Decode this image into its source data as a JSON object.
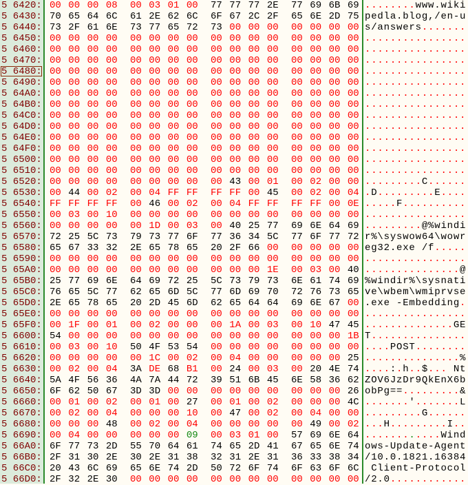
{
  "editor": {
    "selected_address": "5 6480",
    "colors": {
      "address": "#800000",
      "printable": "#000000",
      "non_printable": "#ff0000",
      "tab": "#118811",
      "address_bg": "#dcebdc",
      "separator": "#2a8a2a"
    },
    "rows": [
      {
        "addr": "5 6420",
        "hex": "00 00 00 08 00 03 01 00 77 77 77 2E 77 69 6B 69",
        "ascii": "........www.wiki"
      },
      {
        "addr": "5 6430",
        "hex": "70 65 64 6C 61 2E 62 6C 6F 67 2C 2F 65 6E 2D 75",
        "ascii": "pedla.blog,/en-u"
      },
      {
        "addr": "5 6440",
        "hex": "73 2F 61 6E 73 77 65 72 73 00 00 00 00 00 00 00",
        "ascii": "s/answers......."
      },
      {
        "addr": "5 6450",
        "hex": "00 00 00 00 00 00 00 00 00 00 00 00 00 00 00 00",
        "ascii": "................"
      },
      {
        "addr": "5 6460",
        "hex": "00 00 00 00 00 00 00 00 00 00 00 00 00 00 00 00",
        "ascii": "................"
      },
      {
        "addr": "5 6470",
        "hex": "00 00 00 00 00 00 00 00 00 00 00 00 00 00 00 00",
        "ascii": "................"
      },
      {
        "addr": "5 6480",
        "hex": "00 00 00 00 00 00 00 00 00 00 00 00 00 00 00 00",
        "ascii": "................"
      },
      {
        "addr": "5 6490",
        "hex": "00 00 00 00 00 00 00 00 00 00 00 00 00 00 00 00",
        "ascii": "................"
      },
      {
        "addr": "5 64A0",
        "hex": "00 00 00 00 00 00 00 00 00 00 00 00 00 00 00 00",
        "ascii": "................"
      },
      {
        "addr": "5 64B0",
        "hex": "00 00 00 00 00 00 00 00 00 00 00 00 00 00 00 00",
        "ascii": "................"
      },
      {
        "addr": "5 64C0",
        "hex": "00 00 00 00 00 00 00 00 00 00 00 00 00 00 00 00",
        "ascii": "................"
      },
      {
        "addr": "5 64D0",
        "hex": "00 00 00 00 00 00 00 00 00 00 00 00 00 00 00 00",
        "ascii": "................"
      },
      {
        "addr": "5 64E0",
        "hex": "00 00 00 00 00 00 00 00 00 00 00 00 00 00 00 00",
        "ascii": "................"
      },
      {
        "addr": "5 64F0",
        "hex": "00 00 00 00 00 00 00 00 00 00 00 00 00 00 00 00",
        "ascii": "................"
      },
      {
        "addr": "5 6500",
        "hex": "00 00 00 00 00 00 00 00 00 00 00 00 00 00 00 00",
        "ascii": "................"
      },
      {
        "addr": "5 6510",
        "hex": "00 00 00 00 00 00 00 00 00 00 00 00 00 00 00 00",
        "ascii": "................"
      },
      {
        "addr": "5 6520",
        "hex": "00 00 00 00 00 00 00 00 00 43 00 01 00 02 00 00",
        "ascii": ".........C......"
      },
      {
        "addr": "5 6530",
        "hex": "00 44 00 02 00 04 FF FF FF FF 00 45 00 02 00 04",
        "ascii": ".D.........E...."
      },
      {
        "addr": "5 6540",
        "hex": "FF FF FF FF 00 46 00 02 00 04 FF FF FF FF 00 0E",
        "ascii": ".....F.........."
      },
      {
        "addr": "5 6550",
        "hex": "00 03 00 10 00 00 00 00 00 00 00 00 00 00 00 00",
        "ascii": "................"
      },
      {
        "addr": "5 6560",
        "hex": "00 00 00 00 00 1D 00 03 00 40 25 77 69 6E 64 69",
        "ascii": ".........@%windi"
      },
      {
        "addr": "5 6570",
        "hex": "72 25 5C 73 79 73 77 6F 77 36 34 5C 77 6F 77 72",
        "ascii": "r%\\syswow64\\wowr"
      },
      {
        "addr": "5 6580",
        "hex": "65 67 33 32 2E 65 78 65 20 2F 66 00 00 00 00 00",
        "ascii": "eg32.exe /f....."
      },
      {
        "addr": "5 6590",
        "hex": "00 00 00 00 00 00 00 00 00 00 00 00 00 00 00 00",
        "ascii": "................"
      },
      {
        "addr": "5 65A0",
        "hex": "00 00 00 00 00 00 00 00 00 00 00 1E 00 03 00 40",
        "ascii": "...............@"
      },
      {
        "addr": "5 65B0",
        "hex": "25 77 69 6E 64 69 72 25 5C 73 79 73 6E 61 74 69",
        "ascii": "%windir%\\sysnati"
      },
      {
        "addr": "5 65C0",
        "hex": "76 65 5C 77 62 65 6D 5C 77 6D 69 70 72 76 73 65",
        "ascii": "ve\\wbem\\wmiprvse"
      },
      {
        "addr": "5 65D0",
        "hex": "2E 65 78 65 20 2D 45 6D 62 65 64 64 69 6E 67 00",
        "ascii": ".exe -Embedding."
      },
      {
        "addr": "5 65E0",
        "hex": "00 00 00 00 00 00 00 00 00 00 00 00 00 00 00 00",
        "ascii": "................"
      },
      {
        "addr": "5 65F0",
        "hex": "00 1F 00 01 00 02 00 00 00 1A 00 03 00 10 47 45",
        "ascii": "..............GE"
      },
      {
        "addr": "5 6600",
        "hex": "54 00 00 00 00 00 00 00 00 00 00 00 00 00 00 1B",
        "ascii": "T..............."
      },
      {
        "addr": "5 6610",
        "hex": "00 03 00 10 50 4F 53 54 00 00 00 00 00 00 00 00",
        "ascii": "....POST........"
      },
      {
        "addr": "5 6620",
        "hex": "00 00 00 00 00 1C 00 02 00 04 00 00 00 00 00 25",
        "ascii": "...............%"
      },
      {
        "addr": "5 6630",
        "hex": "00 02 00 04 3A DE 68 B1 00 24 00 03 00 20 4E 74",
        "ascii": "....:.h..$... Nt"
      },
      {
        "addr": "5 6640",
        "hex": "5A 4F 56 36 4A 7A 44 72 39 51 6B 45 6E 58 36 62",
        "ascii": "ZOV6JzDr9QkEnX6b"
      },
      {
        "addr": "5 6650",
        "hex": "6F 62 50 67 3D 3D 00 00 00 00 00 00 00 00 00 26",
        "ascii": "obPg==.........&"
      },
      {
        "addr": "5 6660",
        "hex": "00 01 00 02 00 01 00 27 00 01 00 02 00 00 00 4C",
        "ascii": ".......'.......L"
      },
      {
        "addr": "5 6670",
        "hex": "00 02 00 04 00 00 00 10 00 47 00 02 00 04 00 00",
        "ascii": ".........G......"
      },
      {
        "addr": "5 6680",
        "hex": "00 00 00 48 00 02 00 04 00 00 00 00 00 49 00 02",
        "ascii": "...H.........I.."
      },
      {
        "addr": "5 6690",
        "hex": "00 04 00 00 00 00 00 09 00 03 01 00 57 69 6E 64",
        "ascii": "............Wind"
      },
      {
        "addr": "5 66A0",
        "hex": "6F 77 73 2D 55 70 64 61 74 65 2D 41 67 65 6E 74",
        "ascii": "ows-Update-Agent"
      },
      {
        "addr": "5 66B0",
        "hex": "2F 31 30 2E 30 2E 31 38 32 31 2E 31 36 33 38 34",
        "ascii": "/10.0.1821.16384"
      },
      {
        "addr": "5 66C0",
        "hex": "20 43 6C 69 65 6E 74 2D 50 72 6F 74 6F 63 6F 6C",
        "ascii": " Client-Protocol"
      },
      {
        "addr": "5 66D0",
        "hex": "2F 32 2E 30 00 00 00 00 00 00 00 00 00 00 00 00",
        "ascii": "/2.0............"
      }
    ]
  }
}
